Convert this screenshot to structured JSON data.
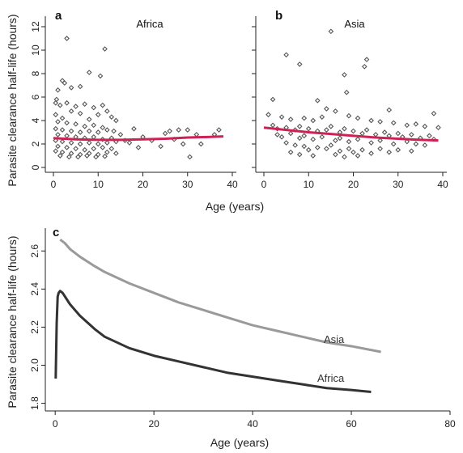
{
  "chart_data": [
    {
      "type": "scatter",
      "panel": "a",
      "title": "Africa",
      "ylabel": "Parasite clearance half-life (hours)",
      "xlim": [
        0,
        40
      ],
      "ylim": [
        0,
        12
      ],
      "xticks": [
        0,
        10,
        20,
        30,
        40
      ],
      "yticks": [
        0,
        2,
        4,
        6,
        8,
        10,
        12
      ],
      "fit_color": "#cc2255",
      "point_color": "#555555",
      "fit": {
        "x": [
          0,
          5,
          10,
          15,
          20,
          25,
          30,
          35,
          38
        ],
        "y": [
          2.5,
          2.4,
          2.35,
          2.35,
          2.4,
          2.45,
          2.55,
          2.6,
          2.65
        ]
      },
      "points": [
        [
          3,
          11.0
        ],
        [
          11.5,
          10.1
        ],
        [
          10.5,
          7.8
        ],
        [
          8,
          8.1
        ],
        [
          2,
          7.4
        ],
        [
          2.5,
          7.2
        ],
        [
          4,
          6.8
        ],
        [
          6,
          6.9
        ],
        [
          1,
          6.6
        ],
        [
          0.7,
          5.8
        ],
        [
          0.5,
          5.5
        ],
        [
          1.5,
          5.3
        ],
        [
          3,
          5.5
        ],
        [
          5,
          5.2
        ],
        [
          7,
          5.4
        ],
        [
          9,
          5.1
        ],
        [
          11,
          5.3
        ],
        [
          12,
          4.8
        ],
        [
          13,
          4.3
        ],
        [
          14,
          4.0
        ],
        [
          10,
          4.5
        ],
        [
          4,
          4.8
        ],
        [
          6,
          4.6
        ],
        [
          0.5,
          4.5
        ],
        [
          2,
          4.2
        ],
        [
          8,
          4.1
        ],
        [
          1,
          3.9
        ],
        [
          3,
          3.8
        ],
        [
          5,
          3.7
        ],
        [
          7,
          3.5
        ],
        [
          9,
          3.6
        ],
        [
          11,
          3.4
        ],
        [
          0.5,
          3.3
        ],
        [
          2,
          3.2
        ],
        [
          4,
          3.1
        ],
        [
          6,
          3.0
        ],
        [
          8,
          3.1
        ],
        [
          10,
          3.0
        ],
        [
          12,
          3.2
        ],
        [
          13.5,
          3.1
        ],
        [
          15,
          2.8
        ],
        [
          1,
          2.8
        ],
        [
          3,
          2.7
        ],
        [
          5,
          2.6
        ],
        [
          7,
          2.5
        ],
        [
          9,
          2.6
        ],
        [
          11,
          2.4
        ],
        [
          13,
          2.5
        ],
        [
          0.5,
          2.3
        ],
        [
          2,
          2.2
        ],
        [
          4,
          2.1
        ],
        [
          6,
          2.0
        ],
        [
          8,
          2.1
        ],
        [
          10,
          2.0
        ],
        [
          12,
          2.1
        ],
        [
          14,
          2.2
        ],
        [
          1,
          1.8
        ],
        [
          3,
          1.7
        ],
        [
          5,
          1.6
        ],
        [
          7,
          1.5
        ],
        [
          9,
          1.6
        ],
        [
          11,
          1.7
        ],
        [
          13,
          1.6
        ],
        [
          0.5,
          1.4
        ],
        [
          2,
          1.3
        ],
        [
          4,
          1.2
        ],
        [
          6,
          1.1
        ],
        [
          8,
          1.2
        ],
        [
          10,
          1.1
        ],
        [
          12,
          1.3
        ],
        [
          1.5,
          1.0
        ],
        [
          3.5,
          0.9
        ],
        [
          5.5,
          0.9
        ],
        [
          7.5,
          1.0
        ],
        [
          9.5,
          0.9
        ],
        [
          11.5,
          0.95
        ],
        [
          14,
          1.2
        ],
        [
          16,
          2.3
        ],
        [
          17,
          2.1
        ],
        [
          18,
          3.3
        ],
        [
          19,
          1.7
        ],
        [
          20,
          2.6
        ],
        [
          22,
          2.3
        ],
        [
          24,
          1.8
        ],
        [
          25,
          2.9
        ],
        [
          26,
          3.1
        ],
        [
          27,
          2.4
        ],
        [
          28,
          3.2
        ],
        [
          29,
          2.0
        ],
        [
          30,
          3.2
        ],
        [
          30.5,
          0.9
        ],
        [
          32,
          2.8
        ],
        [
          33,
          2.0
        ],
        [
          36,
          2.8
        ],
        [
          37,
          3.2
        ]
      ]
    },
    {
      "type": "scatter",
      "panel": "b",
      "title": "Asia",
      "xlabel": "Age (years)",
      "xlim": [
        0,
        40
      ],
      "ylim": [
        0,
        12
      ],
      "xticks": [
        0,
        10,
        20,
        30,
        40
      ],
      "fit_color": "#cc2255",
      "point_color": "#555555",
      "fit": {
        "x": [
          0,
          5,
          10,
          15,
          20,
          25,
          30,
          35,
          39
        ],
        "y": [
          3.4,
          3.2,
          3.0,
          2.85,
          2.7,
          2.55,
          2.45,
          2.35,
          2.3
        ]
      },
      "points": [
        [
          15,
          11.6
        ],
        [
          5,
          9.6
        ],
        [
          23,
          9.2
        ],
        [
          22.5,
          8.6
        ],
        [
          8,
          8.8
        ],
        [
          18,
          7.9
        ],
        [
          18.5,
          6.4
        ],
        [
          2,
          5.8
        ],
        [
          12,
          5.7
        ],
        [
          28,
          4.9
        ],
        [
          38,
          4.6
        ],
        [
          1,
          4.5
        ],
        [
          4,
          4.3
        ],
        [
          6,
          4.1
        ],
        [
          9,
          4.2
        ],
        [
          11,
          4.0
        ],
        [
          13,
          4.3
        ],
        [
          14,
          5.0
        ],
        [
          16,
          4.8
        ],
        [
          19,
          4.4
        ],
        [
          21,
          4.2
        ],
        [
          24,
          4.0
        ],
        [
          26,
          3.9
        ],
        [
          29,
          3.8
        ],
        [
          32,
          3.6
        ],
        [
          34,
          3.7
        ],
        [
          36,
          3.5
        ],
        [
          39,
          3.4
        ],
        [
          2,
          3.6
        ],
        [
          3,
          3.3
        ],
        [
          5,
          3.4
        ],
        [
          7,
          3.2
        ],
        [
          8,
          3.5
        ],
        [
          10,
          3.3
        ],
        [
          12,
          3.1
        ],
        [
          14,
          3.2
        ],
        [
          15,
          3.5
        ],
        [
          17,
          3.0
        ],
        [
          18,
          3.3
        ],
        [
          20,
          3.1
        ],
        [
          22,
          2.9
        ],
        [
          23,
          3.2
        ],
        [
          25,
          2.8
        ],
        [
          27,
          3.0
        ],
        [
          28,
          2.7
        ],
        [
          30,
          2.9
        ],
        [
          31,
          2.6
        ],
        [
          33,
          2.8
        ],
        [
          35,
          2.5
        ],
        [
          37,
          2.7
        ],
        [
          38,
          2.4
        ],
        [
          3,
          2.8
        ],
        [
          4,
          2.6
        ],
        [
          6,
          2.9
        ],
        [
          8,
          2.5
        ],
        [
          9,
          2.7
        ],
        [
          11,
          2.4
        ],
        [
          13,
          2.6
        ],
        [
          16,
          2.3
        ],
        [
          17,
          2.5
        ],
        [
          19,
          2.2
        ],
        [
          21,
          2.4
        ],
        [
          24,
          2.1
        ],
        [
          26,
          2.3
        ],
        [
          29,
          2.0
        ],
        [
          32,
          2.2
        ],
        [
          34,
          2.0
        ],
        [
          36,
          1.9
        ],
        [
          5,
          2.1
        ],
        [
          7,
          1.9
        ],
        [
          9,
          1.8
        ],
        [
          10,
          1.5
        ],
        [
          12,
          1.7
        ],
        [
          14,
          1.6
        ],
        [
          15,
          1.9
        ],
        [
          17,
          1.4
        ],
        [
          19,
          1.6
        ],
        [
          20,
          1.3
        ],
        [
          22,
          1.5
        ],
        [
          24,
          1.2
        ],
        [
          26,
          1.6
        ],
        [
          28,
          1.3
        ],
        [
          30,
          1.5
        ],
        [
          33,
          1.4
        ],
        [
          6,
          1.3
        ],
        [
          8,
          1.1
        ],
        [
          11,
          1.0
        ],
        [
          16,
          1.1
        ],
        [
          18,
          0.9
        ],
        [
          21,
          1.0
        ]
      ]
    },
    {
      "type": "line",
      "panel": "c",
      "xlabel": "Age (years)",
      "ylabel": "Parasite clearance half-life (hours)",
      "xlim": [
        -2,
        80
      ],
      "ylim": [
        1.76,
        2.72
      ],
      "xticks": [
        0,
        20,
        40,
        60,
        80
      ],
      "yticks": [
        1.8,
        2.0,
        2.2,
        2.4,
        2.6
      ],
      "ytick_labels": [
        "1.8",
        "2.0",
        "2.2",
        "2.4",
        "2.6"
      ],
      "series": [
        {
          "name": "Asia",
          "color": "#9a9a9a",
          "x": [
            1,
            2,
            3,
            5,
            8,
            10,
            15,
            20,
            25,
            30,
            35,
            40,
            45,
            50,
            55,
            60,
            66
          ],
          "y": [
            2.66,
            2.64,
            2.61,
            2.57,
            2.52,
            2.49,
            2.43,
            2.38,
            2.33,
            2.29,
            2.25,
            2.21,
            2.18,
            2.15,
            2.12,
            2.1,
            2.07
          ]
        },
        {
          "name": "Africa",
          "color": "#333333",
          "x": [
            0.1,
            0.3,
            0.5,
            0.7,
            1,
            1.5,
            2,
            3,
            5,
            8,
            10,
            15,
            20,
            25,
            30,
            35,
            40,
            45,
            50,
            55,
            60,
            64
          ],
          "y": [
            1.93,
            2.22,
            2.36,
            2.38,
            2.39,
            2.38,
            2.36,
            2.32,
            2.26,
            2.19,
            2.15,
            2.09,
            2.05,
            2.02,
            1.99,
            1.96,
            1.94,
            1.92,
            1.9,
            1.88,
            1.87,
            1.86
          ]
        }
      ]
    }
  ]
}
